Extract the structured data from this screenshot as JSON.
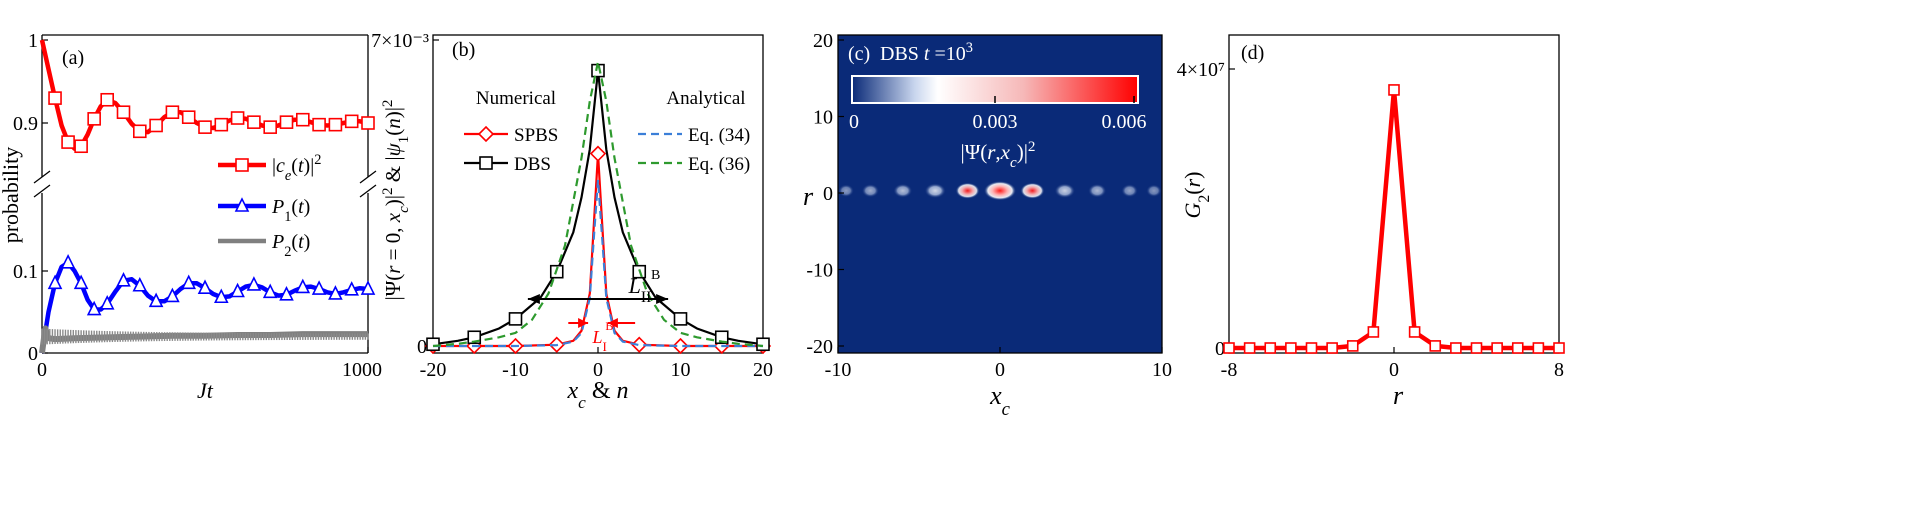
{
  "chart_data": [
    {
      "panel": "(a)",
      "type": "line",
      "xlabel": "Jt",
      "ylabel": "probability",
      "xlim": [
        0,
        1000
      ],
      "broken_y_axis": true,
      "ylim_upper": [
        0.85,
        1.0
      ],
      "ylim_lower": [
        0,
        0.16
      ],
      "xticks": [
        "0",
        "1000"
      ],
      "yticks_upper": [
        "1",
        "0.9"
      ],
      "yticks_lower": [
        "0.1",
        "0"
      ],
      "legend": {
        "placement": "center-right",
        "labels": [
          "|c_e(t)|²",
          "P_1(t)",
          "P_2(t)"
        ]
      },
      "series": [
        {
          "name": "|c_e(t)|²",
          "color": "#ff0000",
          "marker": "square",
          "x": [
            0,
            20,
            40,
            60,
            80,
            100,
            120,
            140,
            160,
            180,
            200,
            225,
            250,
            275,
            300,
            325,
            350,
            375,
            400,
            425,
            450,
            475,
            500,
            525,
            550,
            575,
            600,
            625,
            650,
            675,
            700,
            725,
            750,
            775,
            800,
            825,
            850,
            875,
            900,
            925,
            950,
            975,
            1000
          ],
          "y": [
            1.0,
            0.965,
            0.93,
            0.897,
            0.877,
            0.869,
            0.872,
            0.886,
            0.905,
            0.92,
            0.928,
            0.924,
            0.913,
            0.899,
            0.89,
            0.889,
            0.897,
            0.907,
            0.913,
            0.913,
            0.907,
            0.9,
            0.895,
            0.894,
            0.898,
            0.903,
            0.906,
            0.905,
            0.901,
            0.897,
            0.895,
            0.897,
            0.901,
            0.904,
            0.904,
            0.901,
            0.898,
            0.897,
            0.898,
            0.9,
            0.902,
            0.902,
            0.9
          ]
        },
        {
          "name": "P_1(t)",
          "color": "#0000ff",
          "marker": "triangle",
          "x": [
            0,
            20,
            40,
            60,
            80,
            100,
            120,
            140,
            160,
            180,
            200,
            225,
            250,
            275,
            300,
            325,
            350,
            375,
            400,
            425,
            450,
            475,
            500,
            525,
            550,
            575,
            600,
            625,
            650,
            675,
            700,
            725,
            750,
            775,
            800,
            825,
            850,
            875,
            900,
            925,
            950,
            975,
            1000
          ],
          "y": [
            0.0,
            0.05,
            0.085,
            0.105,
            0.11,
            0.1,
            0.085,
            0.065,
            0.053,
            0.053,
            0.06,
            0.075,
            0.088,
            0.09,
            0.082,
            0.07,
            0.063,
            0.063,
            0.069,
            0.078,
            0.085,
            0.085,
            0.079,
            0.072,
            0.068,
            0.069,
            0.075,
            0.081,
            0.083,
            0.08,
            0.074,
            0.07,
            0.071,
            0.076,
            0.08,
            0.081,
            0.078,
            0.074,
            0.072,
            0.074,
            0.077,
            0.079,
            0.078
          ]
        },
        {
          "name": "P_2(t)",
          "color": "#808080",
          "marker": "none",
          "x": [
            0,
            10,
            20,
            40,
            100,
            200,
            300,
            400,
            500,
            600,
            700,
            800,
            900,
            1000
          ],
          "y": [
            0.0,
            0.03,
            0.018,
            0.017,
            0.018,
            0.019,
            0.02,
            0.021,
            0.021,
            0.022,
            0.022,
            0.023,
            0.023,
            0.023
          ]
        }
      ]
    },
    {
      "panel": "(b)",
      "type": "line",
      "xlabel": "x_c & n",
      "ylabel": "|Ψ(r = 0, x_c)|² & |ψ_1(n)|²",
      "xlim": [
        -20,
        20
      ],
      "ylim": [
        0,
        0.007
      ],
      "xticks": [
        "-20",
        "-10",
        "0",
        "10",
        "20"
      ],
      "yticks": [
        "0",
        "7×10⁻³"
      ],
      "legend_groups": [
        "Numerical",
        "Analytical"
      ],
      "annotations": [
        "L_II^B",
        "L_I^B"
      ],
      "series": [
        {
          "name": "SPBS",
          "color": "#ff0000",
          "marker": "diamond",
          "style": "solid",
          "x": [
            -20,
            -15,
            -10,
            -5,
            -3,
            -2,
            -1,
            0,
            1,
            2,
            3,
            5,
            10,
            15,
            20
          ],
          "y": [
            0,
            0,
            0,
            3e-05,
            0.00012,
            0.00035,
            0.0012,
            0.0044,
            0.0012,
            0.00035,
            0.00012,
            3e-05,
            0,
            0,
            0
          ]
        },
        {
          "name": "DBS",
          "color": "#000000",
          "marker": "square",
          "style": "solid",
          "x": [
            -20,
            -17,
            -15,
            -12,
            -10,
            -7,
            -5,
            -3,
            -2,
            -1,
            0,
            1,
            2,
            3,
            5,
            7,
            10,
            12,
            15,
            17,
            20
          ],
          "y": [
            4e-05,
            0.00012,
            0.0002,
            0.0004,
            0.00062,
            0.0011,
            0.0017,
            0.0026,
            0.0034,
            0.0045,
            0.0063,
            0.0045,
            0.0034,
            0.0026,
            0.0017,
            0.0011,
            0.00062,
            0.0004,
            0.0002,
            0.00012,
            4e-05
          ]
        },
        {
          "name": "Eq. (34)",
          "color": "#3b7fd8",
          "marker": "none",
          "style": "dashed",
          "x": [
            -20,
            -10,
            -5,
            -3,
            -2,
            -1,
            -0.5,
            0,
            0.5,
            1,
            2,
            3,
            5,
            10,
            20
          ],
          "y": [
            0,
            0,
            2e-05,
            0.0001,
            0.0003,
            0.0011,
            0.0025,
            0.0038,
            0.0025,
            0.0011,
            0.0003,
            0.0001,
            2e-05,
            0,
            0
          ]
        },
        {
          "name": "Eq. (36)",
          "color": "#2e9a2e",
          "marker": "none",
          "style": "dashed",
          "x": [
            -20,
            -17,
            -15,
            -12,
            -10,
            -8,
            -6,
            -4,
            -2,
            -1,
            0,
            1,
            2,
            4,
            6,
            8,
            10,
            12,
            15,
            17,
            20
          ],
          "y": [
            0,
            5e-05,
            0.0001,
            0.0002,
            0.0003,
            0.0006,
            0.0012,
            0.0023,
            0.0043,
            0.0056,
            0.0065,
            0.0056,
            0.0043,
            0.0023,
            0.0012,
            0.0006,
            0.0003,
            0.0002,
            0.0001,
            5e-05,
            0
          ]
        }
      ]
    },
    {
      "panel": "(c)",
      "type": "heatmap",
      "title": "DBS  t =10³",
      "xlabel": "x_c",
      "ylabel": "r",
      "xlim": [
        -10,
        10
      ],
      "ylim": [
        -20,
        20
      ],
      "xticks": [
        "-10",
        "0",
        "10"
      ],
      "yticks": [
        "20",
        "10",
        "0",
        "-10",
        "-20"
      ],
      "colorbar": {
        "label": "|Ψ(r,x_c)|²",
        "range": [
          0,
          0.006
        ],
        "ticks": [
          "0",
          "0.003",
          "0.006"
        ]
      },
      "background_color": "#0a2a78",
      "blobs": [
        {
          "x": -9.5,
          "value": 0.0005
        },
        {
          "x": -8,
          "value": 0.001
        },
        {
          "x": -6,
          "value": 0.0015
        },
        {
          "x": -4,
          "value": 0.0022
        },
        {
          "x": -2,
          "value": 0.003
        },
        {
          "x": 0,
          "value": 0.0055
        },
        {
          "x": 2,
          "value": 0.003
        },
        {
          "x": 4,
          "value": 0.002
        },
        {
          "x": 6,
          "value": 0.0013
        },
        {
          "x": 8,
          "value": 0.0008
        },
        {
          "x": 9.5,
          "value": 0.0004
        }
      ]
    },
    {
      "panel": "(d)",
      "type": "line",
      "xlabel": "r",
      "ylabel": "G_2(r)",
      "xlim": [
        -8,
        8
      ],
      "ylim": [
        0,
        40000000
      ],
      "xticks": [
        "-8",
        "0",
        "8"
      ],
      "yticks": [
        "0",
        "4×10⁷"
      ],
      "series": [
        {
          "name": "",
          "color": "#ff0000",
          "marker": "square",
          "x": [
            -8,
            -7,
            -6,
            -5,
            -4,
            -3,
            -2,
            -1,
            0,
            1,
            2,
            3,
            4,
            5,
            6,
            7,
            8
          ],
          "y": [
            0,
            0,
            0,
            0,
            0,
            0,
            300000,
            2300000,
            37000000,
            2300000,
            300000,
            0,
            0,
            0,
            0,
            0,
            0
          ]
        }
      ]
    }
  ]
}
